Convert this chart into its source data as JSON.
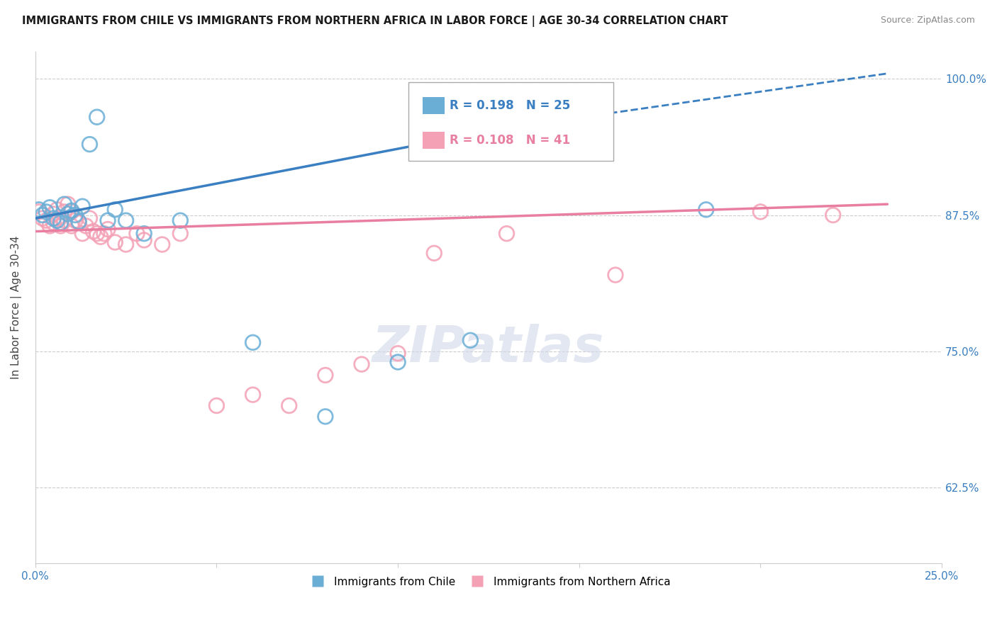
{
  "title": "IMMIGRANTS FROM CHILE VS IMMIGRANTS FROM NORTHERN AFRICA IN LABOR FORCE | AGE 30-34 CORRELATION CHART",
  "source": "Source: ZipAtlas.com",
  "ylabel": "In Labor Force | Age 30-34",
  "xlim": [
    0.0,
    0.25
  ],
  "ylim": [
    0.555,
    1.025
  ],
  "xticks": [
    0.0,
    0.05,
    0.1,
    0.15,
    0.2,
    0.25
  ],
  "xtick_labels": [
    "0.0%",
    "",
    "",
    "",
    "",
    "25.0%"
  ],
  "yticks": [
    0.625,
    0.75,
    0.875,
    1.0
  ],
  "ytick_labels": [
    "62.5%",
    "75.0%",
    "87.5%",
    "100.0%"
  ],
  "legend_labels": [
    "Immigrants from Chile",
    "Immigrants from Northern Africa"
  ],
  "legend_r_chile": "R = 0.198",
  "legend_n_chile": "N = 25",
  "legend_r_africa": "R = 0.108",
  "legend_n_africa": "N = 41",
  "chile_color": "#6aaed6",
  "africa_color": "#f4a0b5",
  "chile_line_color": "#3a7fc1",
  "africa_line_color": "#e87fa0",
  "background_color": "#ffffff",
  "watermark": "ZIPatlas",
  "chile_x": [
    0.001,
    0.002,
    0.003,
    0.004,
    0.005,
    0.006,
    0.007,
    0.008,
    0.009,
    0.01,
    0.011,
    0.012,
    0.013,
    0.015,
    0.017,
    0.02,
    0.022,
    0.025,
    0.03,
    0.04,
    0.06,
    0.08,
    0.1,
    0.12,
    0.185
  ],
  "chile_y": [
    0.88,
    0.875,
    0.878,
    0.882,
    0.872,
    0.87,
    0.868,
    0.885,
    0.876,
    0.879,
    0.875,
    0.869,
    0.883,
    0.94,
    0.965,
    0.87,
    0.88,
    0.87,
    0.858,
    0.87,
    0.758,
    0.69,
    0.74,
    0.76,
    0.88
  ],
  "africa_x": [
    0.001,
    0.002,
    0.003,
    0.004,
    0.005,
    0.005,
    0.006,
    0.006,
    0.007,
    0.008,
    0.008,
    0.009,
    0.01,
    0.01,
    0.011,
    0.012,
    0.013,
    0.014,
    0.015,
    0.016,
    0.017,
    0.018,
    0.019,
    0.02,
    0.022,
    0.025,
    0.028,
    0.03,
    0.035,
    0.04,
    0.05,
    0.06,
    0.07,
    0.08,
    0.09,
    0.1,
    0.11,
    0.13,
    0.16,
    0.2,
    0.22
  ],
  "africa_y": [
    0.878,
    0.872,
    0.87,
    0.865,
    0.876,
    0.868,
    0.88,
    0.872,
    0.865,
    0.878,
    0.87,
    0.885,
    0.865,
    0.878,
    0.87,
    0.868,
    0.858,
    0.865,
    0.872,
    0.86,
    0.858,
    0.855,
    0.858,
    0.862,
    0.85,
    0.848,
    0.858,
    0.852,
    0.848,
    0.858,
    0.7,
    0.71,
    0.7,
    0.728,
    0.738,
    0.748,
    0.84,
    0.858,
    0.82,
    0.878,
    0.875
  ],
  "chile_trend_x0": 0.0,
  "chile_trend_x1": 0.13,
  "chile_trend_x_dash_end": 0.235,
  "africa_trend_x0": 0.0,
  "africa_trend_x1": 0.235
}
